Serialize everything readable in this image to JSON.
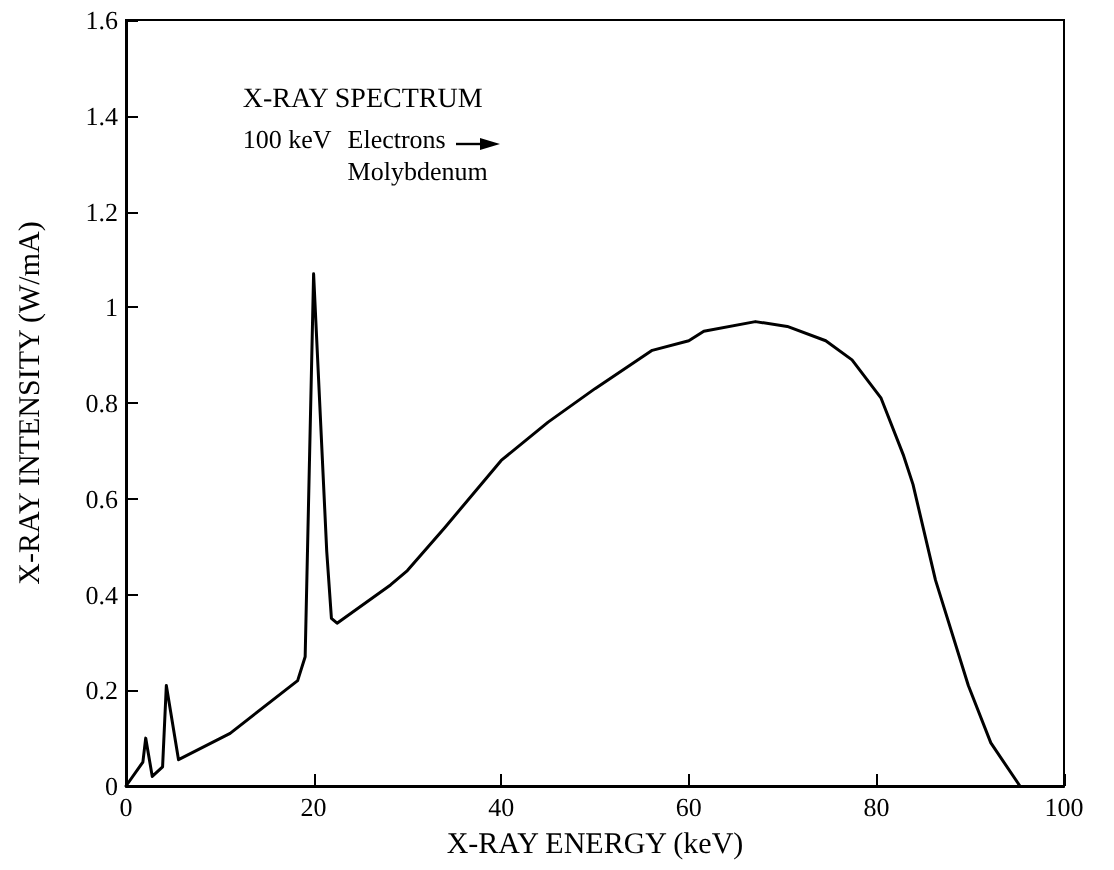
{
  "chart_data": {
    "type": "line",
    "xlabel": "X-RAY ENERGY (keV)",
    "ylabel": "X-RAY INTENSITY (W/mA)",
    "annotations": [
      "X-RAY SPECTRUM",
      "100 keV",
      "Electrons",
      "Molybdenum"
    ],
    "x": [
      0,
      1.8,
      2.1,
      2.8,
      3.9,
      4.3,
      5.6,
      11.1,
      18.3,
      19.1,
      20,
      21.4,
      21.9,
      22.5,
      28.2,
      30,
      34,
      40,
      45,
      50,
      56.1,
      60,
      61.6,
      67.1,
      70.5,
      74.6,
      77.4,
      80.5,
      82.9,
      83.9,
      86.3,
      89.8,
      92.2,
      95.3
    ],
    "series": [
      {
        "color": "#000000",
        "values": [
          0,
          0.05,
          0.1,
          0.02,
          0.04,
          0.21,
          0.055,
          0.11,
          0.22,
          0.27,
          1.07,
          0.49,
          0.35,
          0.34,
          0.42,
          0.45,
          0.54,
          0.68,
          0.76,
          0.83,
          0.91,
          0.93,
          0.95,
          0.97,
          0.96,
          0.93,
          0.89,
          0.81,
          0.69,
          0.63,
          0.43,
          0.21,
          0.09,
          0
        ]
      }
    ],
    "xlim": [
      0,
      100
    ],
    "xticks": [
      0,
      20,
      40,
      60,
      80,
      100
    ],
    "ylim": [
      0,
      1.6
    ],
    "yticks": [
      0,
      0.2,
      0.4,
      0.6,
      0.8,
      1,
      1.2,
      1.4,
      1.6
    ],
    "grid": false,
    "marker": "none",
    "line_style": "solid"
  }
}
